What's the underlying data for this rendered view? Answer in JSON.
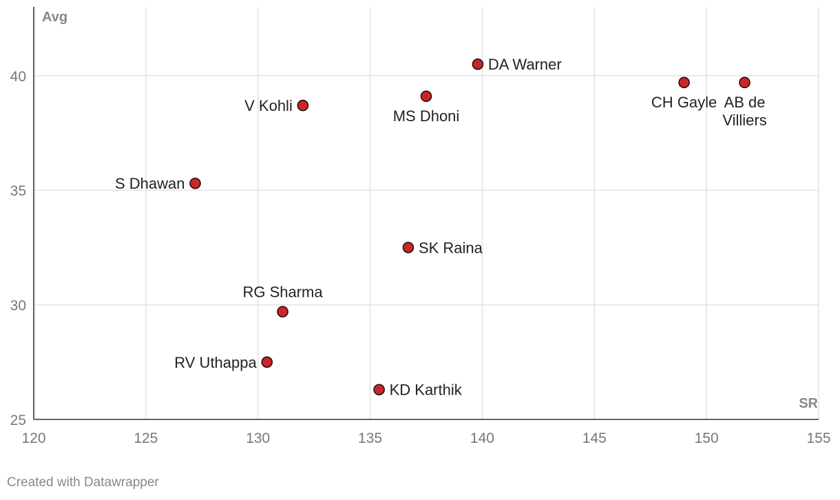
{
  "footer": {
    "credit": "Created with Datawrapper"
  },
  "chart_data": {
    "type": "scatter",
    "title": "",
    "xlabel": "SR",
    "ylabel": "Avg",
    "xlim": [
      120,
      155
    ],
    "ylim": [
      25,
      43
    ],
    "x_ticks": [
      120,
      125,
      130,
      135,
      140,
      145,
      150,
      155
    ],
    "y_ticks": [
      25,
      30,
      35,
      40
    ],
    "grid": true,
    "point_color": "#c62828",
    "points": [
      {
        "label": "DA Warner",
        "x": 139.8,
        "y": 40.5,
        "label_pos": "right"
      },
      {
        "label": "CH Gayle",
        "x": 149.0,
        "y": 39.7,
        "label_pos": "below"
      },
      {
        "label": "AB de Villiers",
        "label_lines": [
          "AB de",
          "Villiers"
        ],
        "x": 151.7,
        "y": 39.7,
        "label_pos": "below"
      },
      {
        "label": "MS Dhoni",
        "x": 137.5,
        "y": 39.1,
        "label_pos": "below"
      },
      {
        "label": "V Kohli",
        "x": 132.0,
        "y": 38.7,
        "label_pos": "left"
      },
      {
        "label": "S Dhawan",
        "x": 127.2,
        "y": 35.3,
        "label_pos": "left"
      },
      {
        "label": "SK Raina",
        "x": 136.7,
        "y": 32.5,
        "label_pos": "right"
      },
      {
        "label": "RG Sharma",
        "x": 131.1,
        "y": 29.7,
        "label_pos": "above"
      },
      {
        "label": "RV Uthappa",
        "x": 130.4,
        "y": 27.5,
        "label_pos": "left"
      },
      {
        "label": "KD Karthik",
        "x": 135.4,
        "y": 26.3,
        "label_pos": "right"
      }
    ]
  }
}
